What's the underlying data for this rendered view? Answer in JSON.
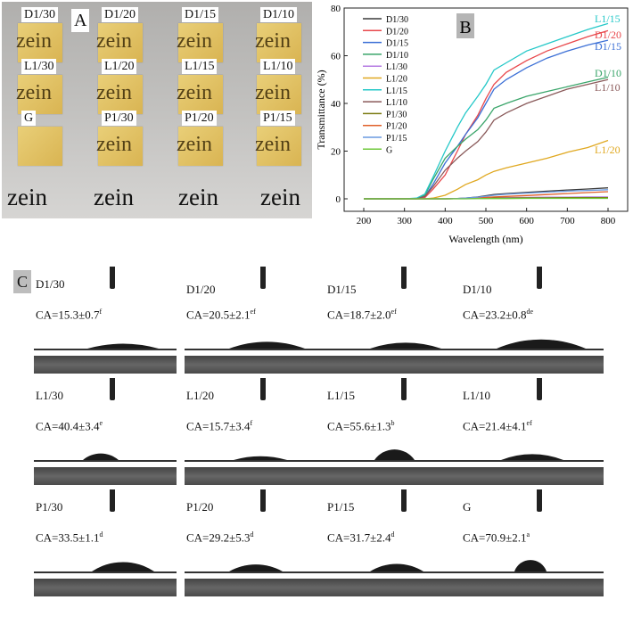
{
  "panelA": {
    "letter": "A",
    "films": [
      {
        "label": "D1/30",
        "shows_text": true
      },
      {
        "label": "D1/20",
        "shows_text": true
      },
      {
        "label": "D1/15",
        "shows_text": true
      },
      {
        "label": "D1/10",
        "shows_text": true
      },
      {
        "label": "L1/30",
        "shows_text": true
      },
      {
        "label": "L1/20",
        "shows_text": true
      },
      {
        "label": "L1/15",
        "shows_text": true
      },
      {
        "label": "L1/10",
        "shows_text": true
      },
      {
        "label": "G",
        "shows_text": false
      },
      {
        "label": "P1/30",
        "shows_text": true
      },
      {
        "label": "P1/20",
        "shows_text": true
      },
      {
        "label": "P1/15",
        "shows_text": true
      }
    ],
    "film_text": "zein",
    "background_text": "zein"
  },
  "chart_data": {
    "type": "line",
    "panel_letter": "B",
    "xlabel": "Wavelength (nm)",
    "ylabel": "Transmittance (%)",
    "xlim": [
      150,
      850
    ],
    "ylim": [
      -5,
      80
    ],
    "xticks": [
      200,
      300,
      400,
      500,
      600,
      700,
      800
    ],
    "yticks": [
      0,
      20,
      40,
      60,
      80
    ],
    "grid": false,
    "legend_placement": "top-left",
    "x": [
      200,
      300,
      330,
      350,
      370,
      400,
      430,
      450,
      480,
      500,
      520,
      550,
      600,
      650,
      700,
      750,
      800
    ],
    "series": [
      {
        "name": "D1/30",
        "color": "#3a3a3a",
        "values": [
          0,
          0,
          0,
          0,
          0,
          0,
          0.1,
          0.3,
          0.8,
          1.3,
          1.8,
          2.2,
          2.7,
          3.2,
          3.7,
          4.1,
          4.6
        ]
      },
      {
        "name": "D1/20",
        "color": "#e8474b",
        "values": [
          0,
          0,
          0,
          0.5,
          4,
          10,
          20,
          27,
          35,
          42,
          48,
          53,
          58,
          62,
          65,
          68,
          70.5
        ],
        "end_label": "D1/20"
      },
      {
        "name": "D1/15",
        "color": "#3b6fd6",
        "values": [
          0,
          0,
          0,
          1,
          6,
          15,
          22,
          27,
          34,
          40,
          46,
          50,
          55,
          59,
          62,
          64.5,
          66.5
        ],
        "end_label": "D1/15"
      },
      {
        "name": "D1/10",
        "color": "#3aa56a",
        "values": [
          0,
          0,
          0.2,
          1.5,
          8,
          17,
          22,
          25,
          29,
          33,
          38,
          40,
          43,
          45,
          47,
          49,
          51
        ],
        "end_label": "D1/10"
      },
      {
        "name": "L1/30",
        "color": "#b57be3",
        "values": [
          0,
          0,
          0,
          0,
          0,
          0,
          0.1,
          0.2,
          0.3,
          0.4,
          0.5,
          0.5,
          0.6,
          0.7,
          0.7,
          0.8,
          0.8
        ]
      },
      {
        "name": "L1/20",
        "color": "#e0a820",
        "values": [
          0,
          0,
          0,
          0,
          0.3,
          1.5,
          4,
          6,
          8,
          10,
          11.5,
          13,
          15,
          17,
          19.5,
          21.5,
          24.5
        ],
        "end_label": "L1/20"
      },
      {
        "name": "L1/15",
        "color": "#25c8c8",
        "values": [
          0,
          0,
          0.3,
          2,
          9,
          20,
          30,
          36,
          43,
          48,
          54,
          57,
          62,
          65,
          68,
          71,
          73.5
        ],
        "end_label": "L1/15"
      },
      {
        "name": "L1/10",
        "color": "#8a5a5a",
        "values": [
          0,
          0,
          0,
          1,
          5,
          12,
          17,
          20,
          24,
          28,
          33,
          36,
          40,
          43,
          46,
          48,
          50
        ],
        "end_label": "L1/10"
      },
      {
        "name": "P1/30",
        "color": "#7a7a10",
        "values": [
          0,
          0,
          0,
          0,
          0,
          0,
          0.1,
          0.1,
          0.2,
          0.2,
          0.3,
          0.3,
          0.4,
          0.4,
          0.5,
          0.5,
          0.5
        ]
      },
      {
        "name": "P1/20",
        "color": "#e0602a",
        "values": [
          0,
          0,
          0,
          0,
          0,
          0,
          0.1,
          0.2,
          0.4,
          0.6,
          0.8,
          1.0,
          1.4,
          1.8,
          2.2,
          2.6,
          3.0
        ]
      },
      {
        "name": "P1/15",
        "color": "#6a9ae0",
        "values": [
          0,
          0,
          0,
          0,
          0,
          0,
          0.1,
          0.3,
          0.7,
          1.1,
          1.5,
          1.9,
          2.4,
          2.8,
          3.2,
          3.5,
          3.8
        ]
      },
      {
        "name": "G",
        "color": "#6fc83a",
        "values": [
          0,
          0,
          0,
          0,
          0,
          0,
          0,
          0,
          0.1,
          0.1,
          0.1,
          0.1,
          0.2,
          0.2,
          0.2,
          0.2,
          0.2
        ]
      }
    ]
  },
  "panelC": {
    "letter": "C",
    "samples": [
      {
        "label": "D1/30",
        "ca": "CA=15.3±0.7",
        "sup": "f",
        "angle": 15.3
      },
      {
        "label": "D1/20",
        "ca": "CA=20.5±2.1",
        "sup": "ef",
        "angle": 20.5
      },
      {
        "label": "D1/15",
        "ca": "CA=18.7±2.0",
        "sup": "ef",
        "angle": 18.7
      },
      {
        "label": "D1/10",
        "ca": "CA=23.2±0.8",
        "sup": "de",
        "angle": 23.2
      },
      {
        "label": "L1/30",
        "ca": "CA=40.4±3.4",
        "sup": "e",
        "angle": 40.4
      },
      {
        "label": "L1/20",
        "ca": "CA=15.7±3.4",
        "sup": "f",
        "angle": 15.7
      },
      {
        "label": "L1/15",
        "ca": "CA=55.6±1.3",
        "sup": "b",
        "angle": 55.6
      },
      {
        "label": "L1/10",
        "ca": "CA=21.4±4.1",
        "sup": "ef",
        "angle": 21.4
      },
      {
        "label": "P1/30",
        "ca": "CA=33.5±1.1",
        "sup": "d",
        "angle": 33.5
      },
      {
        "label": "P1/20",
        "ca": "CA=29.2±5.3",
        "sup": "d",
        "angle": 29.2
      },
      {
        "label": "P1/15",
        "ca": "CA=31.7±2.4",
        "sup": "d",
        "angle": 31.7
      },
      {
        "label": "G",
        "ca": "CA=70.9±2.1",
        "sup": "a",
        "angle": 70.9
      }
    ]
  }
}
